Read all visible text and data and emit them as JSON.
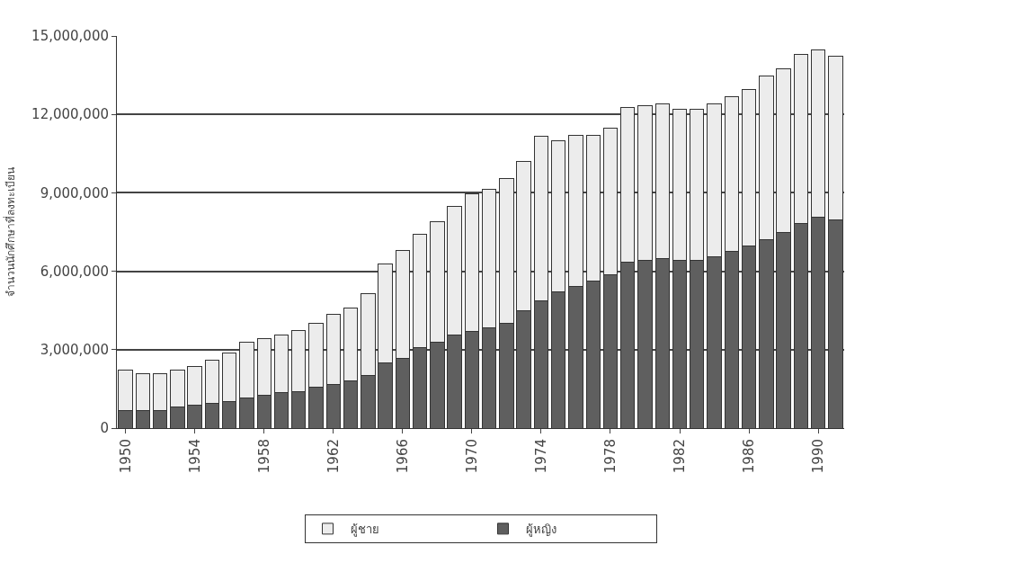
{
  "chart_data": {
    "type": "bar",
    "stacked": true,
    "ylabel": "จำนวนนักศึกษาที่ลงทะเบียน",
    "x": [
      1950,
      1951,
      1952,
      1953,
      1954,
      1955,
      1956,
      1957,
      1958,
      1959,
      1960,
      1961,
      1962,
      1963,
      1964,
      1965,
      1966,
      1967,
      1968,
      1969,
      1970,
      1971,
      1972,
      1973,
      1974,
      1975,
      1976,
      1977,
      1978,
      1979,
      1980,
      1981,
      1982,
      1983,
      1984,
      1985,
      1986,
      1987,
      1988,
      1989,
      1990,
      1991
    ],
    "series": [
      {
        "name": "ผู้หญิง",
        "color": "#5f5f5f",
        "values": [
          680000,
          680000,
          680000,
          810000,
          880000,
          950000,
          1010000,
          1150000,
          1240000,
          1350000,
          1410000,
          1550000,
          1680000,
          1810000,
          2010000,
          2480000,
          2680000,
          3080000,
          3280000,
          3550000,
          3700000,
          3850000,
          4010000,
          4480000,
          4880000,
          5210000,
          5410000,
          5610000,
          5880000,
          6350000,
          6410000,
          6480000,
          6410000,
          6410000,
          6550000,
          6750000,
          6950000,
          7210000,
          7480000,
          7810000,
          8080000,
          7950000
        ]
      },
      {
        "name": "ผู้ชาย",
        "color": "#ececec",
        "values": [
          1530000,
          1400000,
          1400000,
          1400000,
          1470000,
          1660000,
          1870000,
          2130000,
          2170000,
          2200000,
          2340000,
          2460000,
          2670000,
          2800000,
          3140000,
          3800000,
          4130000,
          4330000,
          4600000,
          4930000,
          5250000,
          5300000,
          5540000,
          5720000,
          6270000,
          5790000,
          5790000,
          5590000,
          5600000,
          5930000,
          5940000,
          5930000,
          5800000,
          5800000,
          5860000,
          5930000,
          6000000,
          6270000,
          6270000,
          6470000,
          6400000,
          6260000
        ]
      }
    ],
    "xlim": [
      1949.5,
      1991.5
    ],
    "xticks": [
      1950,
      1954,
      1958,
      1962,
      1966,
      1970,
      1974,
      1978,
      1982,
      1986,
      1990
    ],
    "ylim": [
      0,
      15000000
    ],
    "yticks": [
      {
        "value": 0,
        "label": "0"
      },
      {
        "value": 3000000,
        "label": "3,000,000"
      },
      {
        "value": 6000000,
        "label": "6,000,000"
      },
      {
        "value": 9000000,
        "label": "9,000,000"
      },
      {
        "value": 12000000,
        "label": "12,000,000"
      },
      {
        "value": 15000000,
        "label": "15,000,000"
      }
    ],
    "grid": "y",
    "legend": "bottom"
  }
}
